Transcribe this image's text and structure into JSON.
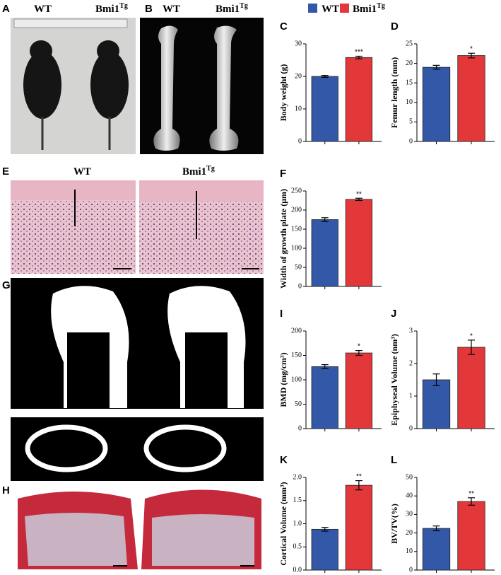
{
  "legend": [
    {
      "name": "WT",
      "color": "#3358a8"
    },
    {
      "name": "Bmi1",
      "superscript": "Tg",
      "color": "#e2383a"
    }
  ],
  "photos": [
    {
      "label": "A",
      "captions": [
        {
          "text": "WT"
        },
        {
          "text": "Bmi1",
          "superscript": "Tg"
        }
      ]
    },
    {
      "label": "B",
      "captions": [
        {
          "text": "WT"
        },
        {
          "text": "Bmi1",
          "superscript": "Tg"
        }
      ]
    },
    {
      "label": "E",
      "captions": [
        {
          "text": "WT"
        },
        {
          "text": "Bmi1",
          "superscript": "Tg"
        }
      ]
    },
    {
      "label": "G"
    },
    {
      "label": "H"
    }
  ],
  "chart_data": [
    {
      "type": "bar",
      "label": "C",
      "ylabel": "Body weight (g)",
      "values": [
        20,
        25.8
      ],
      "errors": [
        0.3,
        0.4
      ],
      "significance": "***",
      "ylim": [
        0,
        30
      ],
      "yticks": [
        0,
        10,
        20,
        30
      ]
    },
    {
      "type": "bar",
      "label": "D",
      "ylabel": "Femur length (mm)",
      "values": [
        19,
        22
      ],
      "errors": [
        0.5,
        0.6
      ],
      "significance": "*",
      "ylim": [
        0,
        25
      ],
      "yticks": [
        0,
        5,
        10,
        15,
        20,
        25
      ]
    },
    {
      "type": "bar",
      "label": "F",
      "ylabel": "Width of growth plate (μm)",
      "values": [
        175,
        228
      ],
      "errors": [
        5,
        3
      ],
      "significance": "**",
      "ylim": [
        0,
        250
      ],
      "yticks": [
        0,
        50,
        100,
        150,
        200,
        250
      ]
    },
    {
      "type": "bar",
      "label": "I",
      "ylabel": "BMD (mg/cm³)",
      "values": [
        127,
        155
      ],
      "errors": [
        4,
        5
      ],
      "significance": "*",
      "ylim": [
        0,
        200
      ],
      "yticks": [
        0,
        50,
        100,
        150,
        200
      ]
    },
    {
      "type": "bar",
      "label": "J",
      "ylabel": "Epiphyseal Volume (nm³)",
      "values": [
        1.5,
        2.5
      ],
      "errors": [
        0.18,
        0.22
      ],
      "significance": "*",
      "ylim": [
        0,
        3
      ],
      "yticks": [
        0,
        1,
        2,
        3
      ]
    },
    {
      "type": "bar",
      "label": "K",
      "ylabel": "Cortical Volume (mm³)",
      "values": [
        0.88,
        1.83
      ],
      "errors": [
        0.04,
        0.1
      ],
      "significance": "**",
      "ylim": [
        0,
        2
      ],
      "yticks": [
        {
          "value": 0,
          "label": "0.0"
        },
        0.5,
        {
          "value": 1,
          "label": "1.0"
        },
        1.5,
        {
          "value": 2,
          "label": "2.0"
        }
      ]
    },
    {
      "type": "bar",
      "label": "L",
      "ylabel": "BV/TV(%)",
      "values": [
        22.5,
        37
      ],
      "errors": [
        1.3,
        2
      ],
      "significance": "**",
      "ylim": [
        0,
        50
      ],
      "yticks": [
        0,
        10,
        20,
        30,
        40,
        50
      ]
    }
  ]
}
